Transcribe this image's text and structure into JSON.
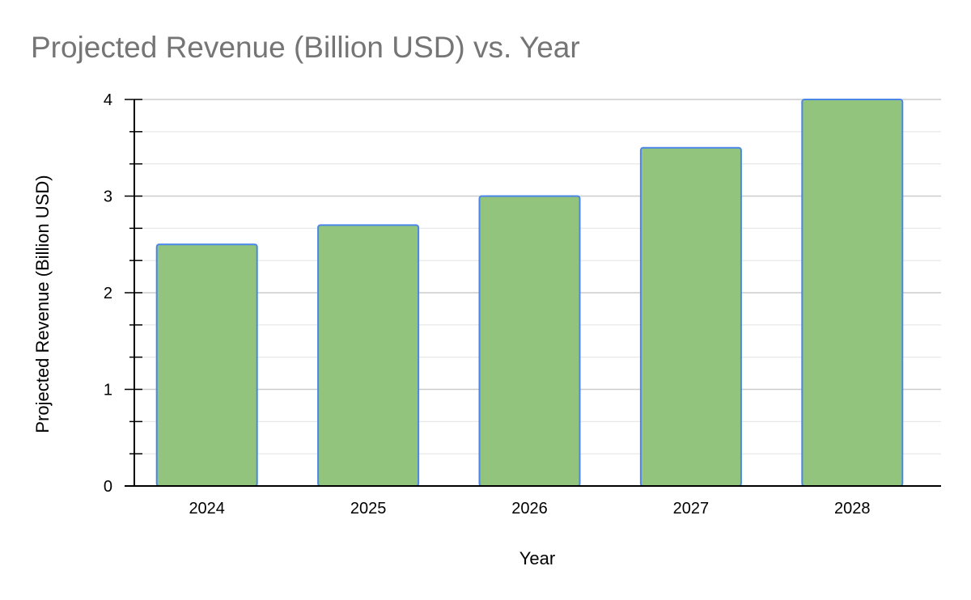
{
  "chart_data": {
    "type": "bar",
    "title": "Projected Revenue (Billion USD) vs. Year",
    "xlabel": "Year",
    "ylabel": "Projected Revenue (Billion USD)",
    "categories": [
      "2024",
      "2025",
      "2026",
      "2027",
      "2028"
    ],
    "values": [
      2.5,
      2.7,
      3.0,
      3.5,
      4.0
    ],
    "ylim": [
      0,
      4
    ],
    "y_ticks": [
      "0",
      "1",
      "2",
      "3",
      "4"
    ],
    "grid": true,
    "legend": "none",
    "colors": {
      "bar_fill": "#93c47d",
      "bar_stroke": "#4a86e8",
      "title": "#757575",
      "major_grid": "#cccccc",
      "minor_grid": "#e6e6e6",
      "axis": "#000000"
    }
  }
}
